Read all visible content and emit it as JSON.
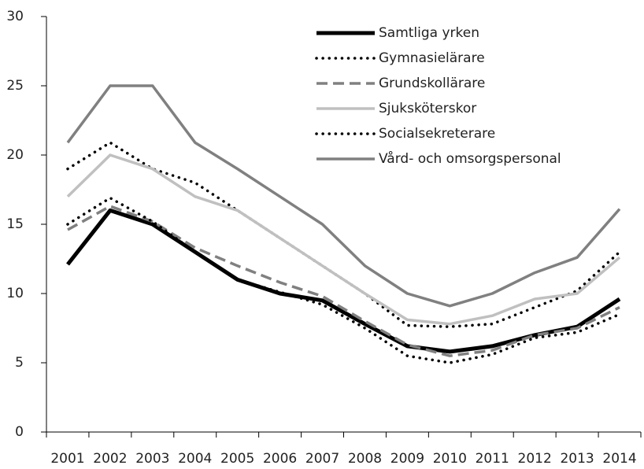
{
  "chart_data": {
    "type": "line",
    "categories": [
      "2001",
      "2002",
      "2003",
      "2004",
      "2005",
      "2006",
      "2007",
      "2008",
      "2009",
      "2010",
      "2011",
      "2012",
      "2013",
      "2014"
    ],
    "series": [
      {
        "name": "Samtliga yrken",
        "color": "#000000",
        "style": "thick",
        "values": [
          12.1,
          16,
          15,
          13,
          11,
          10,
          9.5,
          7.8,
          6.2,
          5.8,
          6.2,
          7,
          7.6,
          9.6
        ]
      },
      {
        "name": "Gymnasielärare",
        "color": "#000000",
        "style": "dotted",
        "values": [
          19,
          20.9,
          19,
          18,
          16,
          14,
          12,
          10,
          7.7,
          7.6,
          7.8,
          9,
          10.2,
          13
        ]
      },
      {
        "name": "Grundskollärare",
        "color": "#808080",
        "style": "dashed",
        "values": [
          14.6,
          16.3,
          15.2,
          13.3,
          12,
          10.8,
          9.8,
          8,
          6.3,
          5.5,
          5.9,
          7,
          7.5,
          9
        ]
      },
      {
        "name": "Sjuksköterskor",
        "color": "#c0c0c0",
        "style": "solid",
        "values": [
          17,
          20,
          19,
          17,
          16,
          14,
          12,
          10,
          8.1,
          7.8,
          8.4,
          9.6,
          10,
          12.6
        ]
      },
      {
        "name": "Socialsekreterare",
        "color": "#000000",
        "style": "dotted",
        "values": [
          15,
          16.9,
          15.2,
          13,
          11,
          10.1,
          9.2,
          7.5,
          5.5,
          5,
          5.6,
          6.8,
          7.2,
          8.5
        ]
      },
      {
        "name": "Vård- och omsorgspersonal",
        "color": "#808080",
        "style": "solid",
        "values": [
          20.9,
          25,
          25,
          20.9,
          19,
          17,
          15,
          12,
          10,
          9.1,
          10,
          11.5,
          12.6,
          16.1
        ]
      }
    ],
    "ylim": [
      0,
      30
    ],
    "yticks": [
      0,
      5,
      10,
      15,
      20,
      25,
      30
    ],
    "grid": false,
    "legend": "top-right"
  }
}
